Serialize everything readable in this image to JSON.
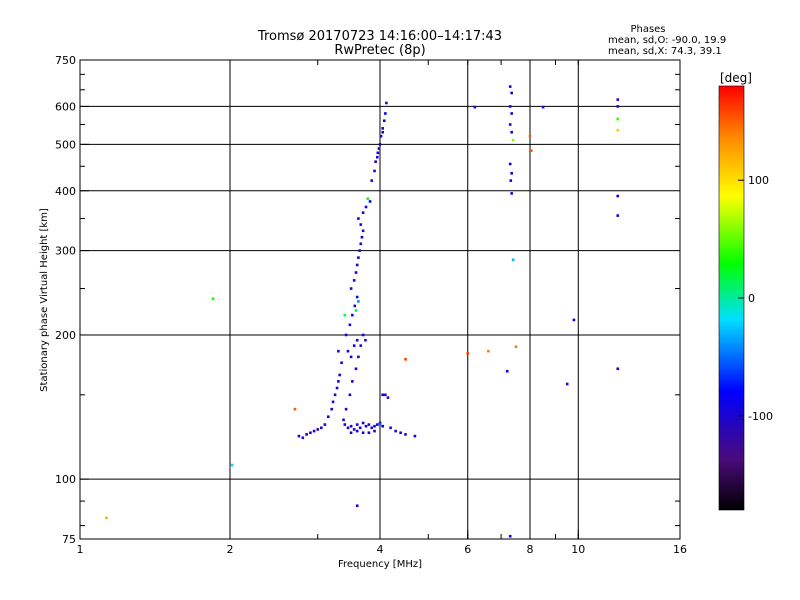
{
  "chart_data": {
    "type": "scatter",
    "title": "Tromsø 20170723 14:16:00–14:17:43",
    "subtitle": "RwPretec (8p)",
    "xlabel": "Frequency [MHz]",
    "ylabel": "Stationary phase Virtual Height [km]",
    "x_scale": "log",
    "y_scale": "log",
    "xlim": [
      1,
      16
    ],
    "ylim": [
      75,
      750
    ],
    "x_ticks": [
      1,
      2,
      4,
      6,
      8,
      10,
      16
    ],
    "x_tick_labels": [
      "1",
      "2",
      "4",
      "6",
      "8",
      "10",
      "16"
    ],
    "y_ticks": [
      75,
      100,
      200,
      300,
      400,
      500,
      600,
      750
    ],
    "y_tick_labels": [
      "75",
      "100",
      "200",
      "300",
      "400",
      "500",
      "600",
      "750"
    ],
    "grid_x": [
      2,
      4,
      6,
      8,
      10
    ],
    "grid_y": [
      100,
      200,
      300,
      400,
      500,
      600
    ],
    "phases_box": {
      "header": "Phases",
      "line1": "mean, sd,O: -90.0, 19.9",
      "line2": "mean, sd,X:  74.3, 39.1"
    },
    "colorbar": {
      "label": "[deg]",
      "min": -180,
      "max": 180,
      "tick_values": [
        100,
        0,
        -100
      ],
      "tick_labels": [
        "100",
        "0",
        "-100"
      ]
    },
    "points": [
      {
        "f": 1.13,
        "h": 83,
        "p": 120
      },
      {
        "f": 1.85,
        "h": 238,
        "p": 35
      },
      {
        "f": 2.02,
        "h": 107,
        "p": -20
      },
      {
        "f": 2.7,
        "h": 140,
        "p": 150
      },
      {
        "f": 2.75,
        "h": 123,
        "p": -95
      },
      {
        "f": 2.8,
        "h": 122,
        "p": -100
      },
      {
        "f": 2.85,
        "h": 124,
        "p": -90
      },
      {
        "f": 2.9,
        "h": 125,
        "p": -100
      },
      {
        "f": 2.95,
        "h": 126,
        "p": -95
      },
      {
        "f": 3.0,
        "h": 127,
        "p": -105
      },
      {
        "f": 3.05,
        "h": 128,
        "p": -95
      },
      {
        "f": 3.1,
        "h": 130,
        "p": -100
      },
      {
        "f": 3.15,
        "h": 135,
        "p": -90
      },
      {
        "f": 3.2,
        "h": 140,
        "p": -100
      },
      {
        "f": 3.22,
        "h": 145,
        "p": -95
      },
      {
        "f": 3.25,
        "h": 150,
        "p": -110
      },
      {
        "f": 3.28,
        "h": 155,
        "p": -100
      },
      {
        "f": 3.3,
        "h": 160,
        "p": -95
      },
      {
        "f": 3.32,
        "h": 165,
        "p": -90
      },
      {
        "f": 3.3,
        "h": 185,
        "p": -100
      },
      {
        "f": 3.35,
        "h": 175,
        "p": -95
      },
      {
        "f": 3.38,
        "h": 133,
        "p": -100
      },
      {
        "f": 3.4,
        "h": 130,
        "p": -90
      },
      {
        "f": 3.45,
        "h": 128,
        "p": -105
      },
      {
        "f": 3.5,
        "h": 129,
        "p": -95
      },
      {
        "f": 3.55,
        "h": 127,
        "p": -100
      },
      {
        "f": 3.6,
        "h": 130,
        "p": -90
      },
      {
        "f": 3.65,
        "h": 128,
        "p": -95
      },
      {
        "f": 3.7,
        "h": 131,
        "p": -100
      },
      {
        "f": 3.75,
        "h": 129,
        "p": -90
      },
      {
        "f": 3.8,
        "h": 130,
        "p": -95
      },
      {
        "f": 3.85,
        "h": 128,
        "p": -100
      },
      {
        "f": 3.9,
        "h": 129,
        "p": -95
      },
      {
        "f": 3.95,
        "h": 130,
        "p": -105
      },
      {
        "f": 4.0,
        "h": 131,
        "p": -100
      },
      {
        "f": 4.05,
        "h": 129,
        "p": -90
      },
      {
        "f": 3.42,
        "h": 140,
        "p": -100
      },
      {
        "f": 3.48,
        "h": 150,
        "p": -95
      },
      {
        "f": 3.52,
        "h": 160,
        "p": -100
      },
      {
        "f": 3.58,
        "h": 170,
        "p": -90
      },
      {
        "f": 3.62,
        "h": 180,
        "p": -95
      },
      {
        "f": 3.66,
        "h": 190,
        "p": -100
      },
      {
        "f": 3.7,
        "h": 200,
        "p": -95
      },
      {
        "f": 3.74,
        "h": 195,
        "p": -90
      },
      {
        "f": 3.45,
        "h": 185,
        "p": -100
      },
      {
        "f": 3.5,
        "h": 180,
        "p": -105
      },
      {
        "f": 3.55,
        "h": 190,
        "p": -95
      },
      {
        "f": 3.6,
        "h": 195,
        "p": -100
      },
      {
        "f": 3.42,
        "h": 200,
        "p": -100
      },
      {
        "f": 3.48,
        "h": 210,
        "p": -95
      },
      {
        "f": 3.52,
        "h": 220,
        "p": -90
      },
      {
        "f": 3.56,
        "h": 230,
        "p": -100
      },
      {
        "f": 3.6,
        "h": 240,
        "p": -95
      },
      {
        "f": 3.5,
        "h": 250,
        "p": -100
      },
      {
        "f": 3.55,
        "h": 260,
        "p": -105
      },
      {
        "f": 3.58,
        "h": 270,
        "p": -95
      },
      {
        "f": 3.6,
        "h": 280,
        "p": -100
      },
      {
        "f": 3.62,
        "h": 290,
        "p": -90
      },
      {
        "f": 3.64,
        "h": 300,
        "p": -95
      },
      {
        "f": 3.66,
        "h": 310,
        "p": -100
      },
      {
        "f": 3.68,
        "h": 320,
        "p": -95
      },
      {
        "f": 3.7,
        "h": 330,
        "p": -100
      },
      {
        "f": 3.66,
        "h": 340,
        "p": -90
      },
      {
        "f": 3.62,
        "h": 350,
        "p": -95
      },
      {
        "f": 3.7,
        "h": 360,
        "p": -100
      },
      {
        "f": 3.75,
        "h": 370,
        "p": -95
      },
      {
        "f": 3.78,
        "h": 385,
        "p": 20
      },
      {
        "f": 3.82,
        "h": 380,
        "p": -95
      },
      {
        "f": 3.85,
        "h": 420,
        "p": -100
      },
      {
        "f": 3.9,
        "h": 440,
        "p": -95
      },
      {
        "f": 3.92,
        "h": 460,
        "p": -100
      },
      {
        "f": 3.96,
        "h": 480,
        "p": -90
      },
      {
        "f": 4.0,
        "h": 500,
        "p": -95
      },
      {
        "f": 4.02,
        "h": 520,
        "p": -100
      },
      {
        "f": 4.05,
        "h": 540,
        "p": -95
      },
      {
        "f": 4.08,
        "h": 560,
        "p": -100
      },
      {
        "f": 4.1,
        "h": 580,
        "p": -90
      },
      {
        "f": 4.12,
        "h": 610,
        "p": -100
      },
      {
        "f": 3.95,
        "h": 470,
        "p": -95
      },
      {
        "f": 3.98,
        "h": 490,
        "p": -100
      },
      {
        "f": 4.05,
        "h": 530,
        "p": -105
      },
      {
        "f": 3.58,
        "h": 225,
        "p": 10
      },
      {
        "f": 3.62,
        "h": 235,
        "p": -40
      },
      {
        "f": 3.4,
        "h": 220,
        "p": 20
      },
      {
        "f": 3.5,
        "h": 125,
        "p": -95
      },
      {
        "f": 3.6,
        "h": 126,
        "p": -100
      },
      {
        "f": 3.7,
        "h": 125,
        "p": -90
      },
      {
        "f": 3.8,
        "h": 125,
        "p": -95
      },
      {
        "f": 3.9,
        "h": 126,
        "p": -100
      },
      {
        "f": 4.0,
        "h": 130,
        "p": -50
      },
      {
        "f": 4.05,
        "h": 150,
        "p": -95
      },
      {
        "f": 4.1,
        "h": 150,
        "p": -100
      },
      {
        "f": 4.15,
        "h": 148,
        "p": -105
      },
      {
        "f": 4.2,
        "h": 128,
        "p": -95
      },
      {
        "f": 4.3,
        "h": 126,
        "p": -100
      },
      {
        "f": 4.4,
        "h": 125,
        "p": -95
      },
      {
        "f": 4.5,
        "h": 124,
        "p": -100
      },
      {
        "f": 4.7,
        "h": 123,
        "p": -95
      },
      {
        "f": 4.5,
        "h": 178,
        "p": 160
      },
      {
        "f": 3.6,
        "h": 88,
        "p": -95
      },
      {
        "f": 6.0,
        "h": 183,
        "p": 160
      },
      {
        "f": 6.2,
        "h": 598,
        "p": -90
      },
      {
        "f": 6.6,
        "h": 185,
        "p": 140
      },
      {
        "f": 7.2,
        "h": 168,
        "p": -90
      },
      {
        "f": 7.5,
        "h": 189,
        "p": 140
      },
      {
        "f": 7.3,
        "h": 660,
        "p": -95
      },
      {
        "f": 7.35,
        "h": 640,
        "p": -100
      },
      {
        "f": 7.3,
        "h": 600,
        "p": -90
      },
      {
        "f": 7.35,
        "h": 580,
        "p": -95
      },
      {
        "f": 7.3,
        "h": 550,
        "p": -100
      },
      {
        "f": 7.35,
        "h": 530,
        "p": -90
      },
      {
        "f": 7.4,
        "h": 510,
        "p": 60
      },
      {
        "f": 7.3,
        "h": 455,
        "p": -95
      },
      {
        "f": 7.35,
        "h": 435,
        "p": -100
      },
      {
        "f": 7.32,
        "h": 420,
        "p": -90
      },
      {
        "f": 7.35,
        "h": 395,
        "p": -95
      },
      {
        "f": 7.4,
        "h": 287,
        "p": -30
      },
      {
        "f": 7.3,
        "h": 76,
        "p": -90
      },
      {
        "f": 8.0,
        "h": 520,
        "p": 150
      },
      {
        "f": 8.05,
        "h": 485,
        "p": 150
      },
      {
        "f": 8.5,
        "h": 598,
        "p": -95
      },
      {
        "f": 9.5,
        "h": 158,
        "p": -95
      },
      {
        "f": 9.8,
        "h": 215,
        "p": -90
      },
      {
        "f": 12.0,
        "h": 620,
        "p": -100
      },
      {
        "f": 12.0,
        "h": 600,
        "p": -95
      },
      {
        "f": 12.0,
        "h": 565,
        "p": 40
      },
      {
        "f": 12.0,
        "h": 535,
        "p": 110
      },
      {
        "f": 12.0,
        "h": 390,
        "p": -100
      },
      {
        "f": 12.0,
        "h": 355,
        "p": -95
      },
      {
        "f": 12.0,
        "h": 170,
        "p": -90
      }
    ]
  }
}
